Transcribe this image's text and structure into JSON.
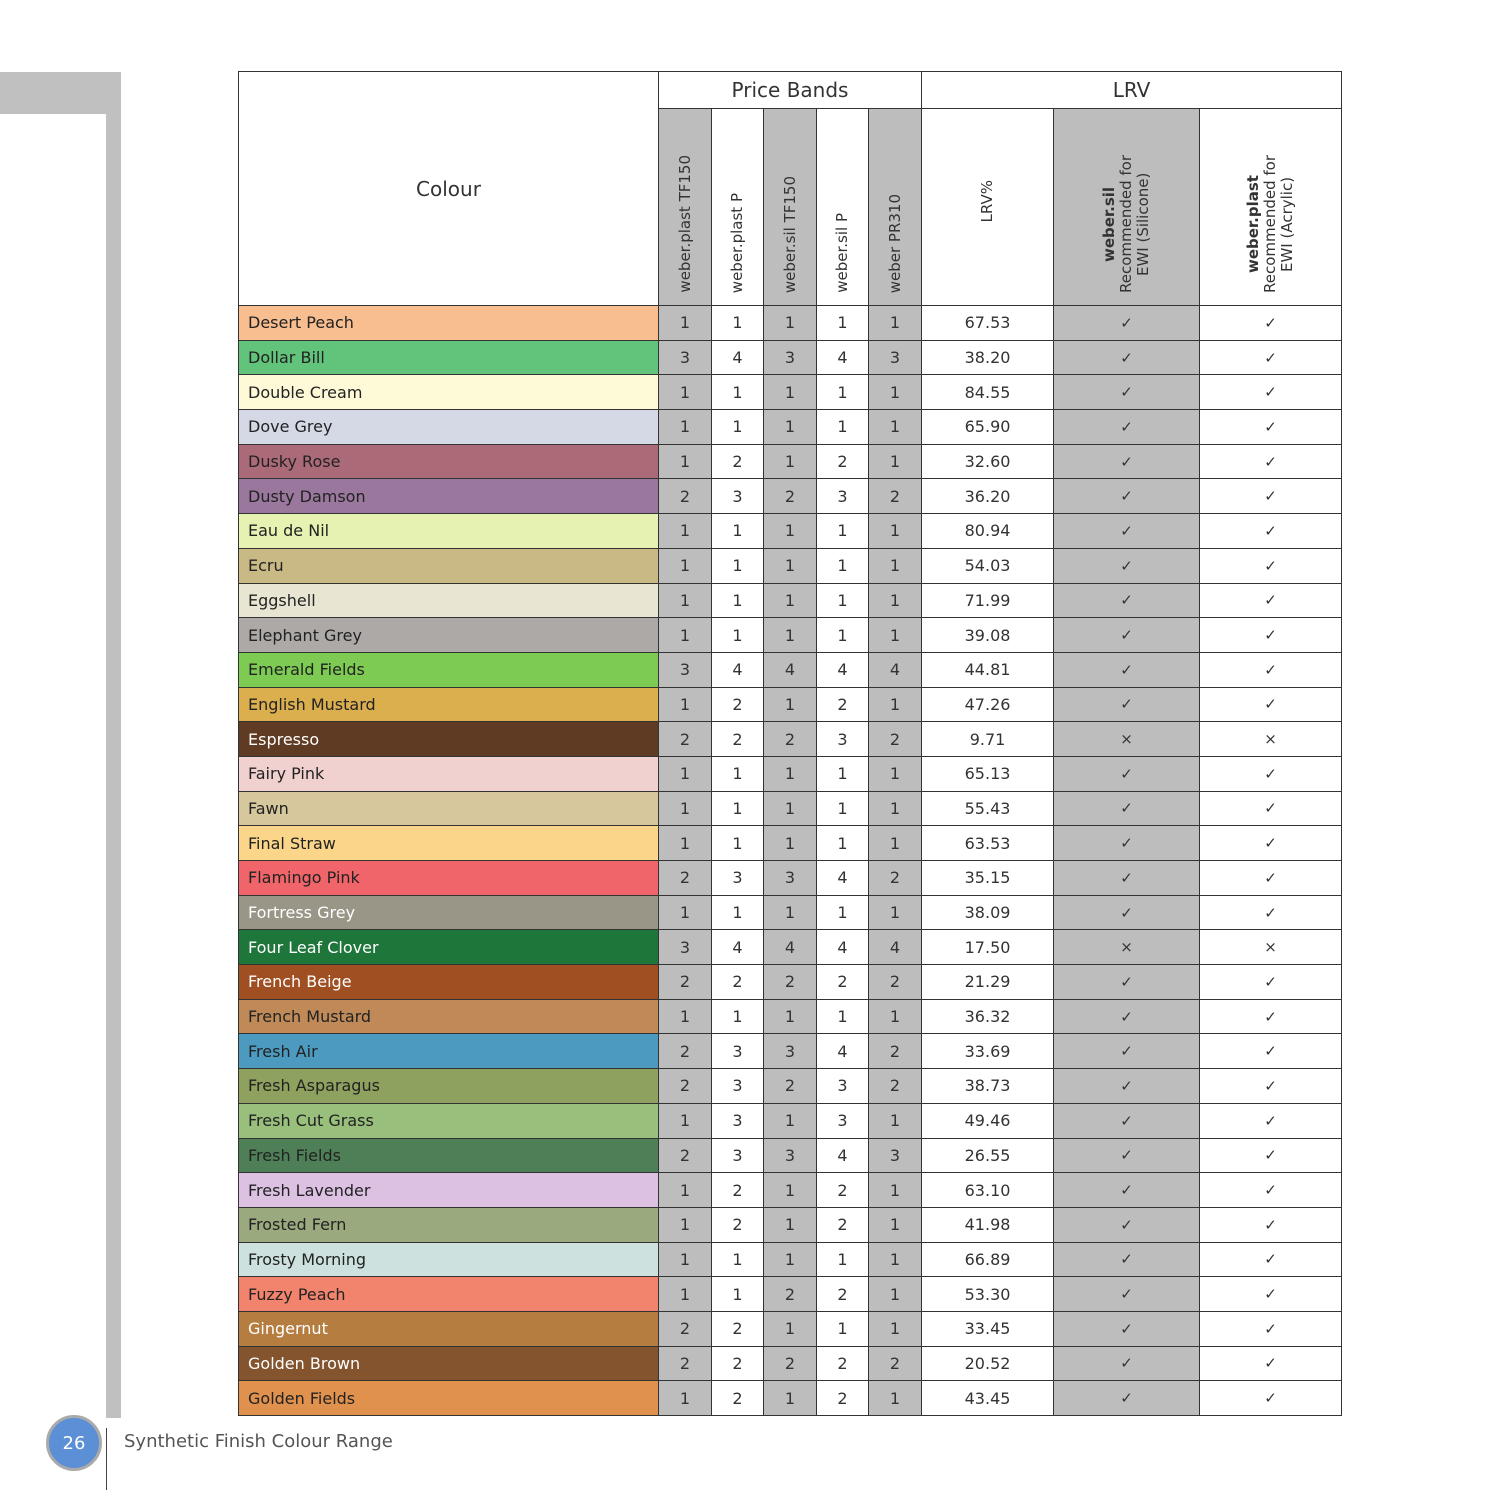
{
  "header": {
    "colour": "Colour",
    "price_bands": "Price Bands",
    "lrv": "LRV",
    "price_cols": [
      "weber.plast TF150",
      "weber.plast P",
      "weber.sil TF150",
      "weber.sil P",
      "weber PR310"
    ],
    "lrv_pct": "LRV%",
    "sil_bold": "weber.sil",
    "sil_rest1": "Recommended for",
    "sil_rest2": "EWI (Silicone)",
    "plast_bold": "weber.plast",
    "plast_rest1": "Recommended for",
    "plast_rest2": "EWI (Acrylic)"
  },
  "marks": {
    "yes": "✓",
    "no": "×"
  },
  "rows": [
    {
      "name": "Desert Peach",
      "color": "#f8be90",
      "bands": [
        1,
        1,
        1,
        1,
        1
      ],
      "lrv": "67.53",
      "sil": "yes",
      "plast": "yes"
    },
    {
      "name": "Dollar Bill",
      "color": "#62c47a",
      "bands": [
        3,
        4,
        3,
        4,
        3
      ],
      "lrv": "38.20",
      "sil": "yes",
      "plast": "yes"
    },
    {
      "name": "Double Cream",
      "color": "#fefad8",
      "bands": [
        1,
        1,
        1,
        1,
        1
      ],
      "lrv": "84.55",
      "sil": "yes",
      "plast": "yes"
    },
    {
      "name": "Dove Grey",
      "color": "#d5d9e6",
      "bands": [
        1,
        1,
        1,
        1,
        1
      ],
      "lrv": "65.90",
      "sil": "yes",
      "plast": "yes"
    },
    {
      "name": "Dusky Rose",
      "color": "#ab6a77",
      "bands": [
        1,
        2,
        1,
        2,
        1
      ],
      "lrv": "32.60",
      "sil": "yes",
      "plast": "yes"
    },
    {
      "name": "Dusty Damson",
      "color": "#9a789e",
      "bands": [
        2,
        3,
        2,
        3,
        2
      ],
      "lrv": "36.20",
      "sil": "yes",
      "plast": "yes"
    },
    {
      "name": "Eau de Nil",
      "color": "#e6f2b2",
      "bands": [
        1,
        1,
        1,
        1,
        1
      ],
      "lrv": "80.94",
      "sil": "yes",
      "plast": "yes"
    },
    {
      "name": "Ecru",
      "color": "#c9b985",
      "bands": [
        1,
        1,
        1,
        1,
        1
      ],
      "lrv": "54.03",
      "sil": "yes",
      "plast": "yes"
    },
    {
      "name": "Eggshell",
      "color": "#e8e6d3",
      "bands": [
        1,
        1,
        1,
        1,
        1
      ],
      "lrv": "71.99",
      "sil": "yes",
      "plast": "yes"
    },
    {
      "name": "Elephant Grey",
      "color": "#ada9a6",
      "bands": [
        1,
        1,
        1,
        1,
        1
      ],
      "lrv": "39.08",
      "sil": "yes",
      "plast": "yes"
    },
    {
      "name": "Emerald Fields",
      "color": "#7ecb53",
      "bands": [
        3,
        4,
        4,
        4,
        4
      ],
      "lrv": "44.81",
      "sil": "yes",
      "plast": "yes"
    },
    {
      "name": "English Mustard",
      "color": "#dbae4e",
      "bands": [
        1,
        2,
        1,
        2,
        1
      ],
      "lrv": "47.26",
      "sil": "yes",
      "plast": "yes"
    },
    {
      "name": "Espresso",
      "color": "#5e3b22",
      "bands": [
        2,
        2,
        2,
        3,
        2
      ],
      "lrv": "9.71",
      "sil": "no",
      "plast": "no",
      "light": true
    },
    {
      "name": "Fairy Pink",
      "color": "#f1d1cf",
      "bands": [
        1,
        1,
        1,
        1,
        1
      ],
      "lrv": "65.13",
      "sil": "yes",
      "plast": "yes"
    },
    {
      "name": "Fawn",
      "color": "#d6c79c",
      "bands": [
        1,
        1,
        1,
        1,
        1
      ],
      "lrv": "55.43",
      "sil": "yes",
      "plast": "yes"
    },
    {
      "name": "Final Straw",
      "color": "#fbd68a",
      "bands": [
        1,
        1,
        1,
        1,
        1
      ],
      "lrv": "63.53",
      "sil": "yes",
      "plast": "yes"
    },
    {
      "name": "Flamingo Pink",
      "color": "#f0656a",
      "bands": [
        2,
        3,
        3,
        4,
        2
      ],
      "lrv": "35.15",
      "sil": "yes",
      "plast": "yes"
    },
    {
      "name": "Fortress Grey",
      "color": "#999688",
      "bands": [
        1,
        1,
        1,
        1,
        1
      ],
      "lrv": "38.09",
      "sil": "yes",
      "plast": "yes",
      "light": true
    },
    {
      "name": "Four Leaf Clover",
      "color": "#1f763b",
      "bands": [
        3,
        4,
        4,
        4,
        4
      ],
      "lrv": "17.50",
      "sil": "no",
      "plast": "no",
      "light": true
    },
    {
      "name": "French Beige",
      "color": "#9f4f22",
      "bands": [
        2,
        2,
        2,
        2,
        2
      ],
      "lrv": "21.29",
      "sil": "yes",
      "plast": "yes",
      "light": true
    },
    {
      "name": "French Mustard",
      "color": "#c08a58",
      "bands": [
        1,
        1,
        1,
        1,
        1
      ],
      "lrv": "36.32",
      "sil": "yes",
      "plast": "yes"
    },
    {
      "name": "Fresh Air",
      "color": "#4d9ac0",
      "bands": [
        2,
        3,
        3,
        4,
        2
      ],
      "lrv": "33.69",
      "sil": "yes",
      "plast": "yes"
    },
    {
      "name": "Fresh Asparagus",
      "color": "#8fa15f",
      "bands": [
        2,
        3,
        2,
        3,
        2
      ],
      "lrv": "38.73",
      "sil": "yes",
      "plast": "yes"
    },
    {
      "name": "Fresh Cut Grass",
      "color": "#98bf7b",
      "bands": [
        1,
        3,
        1,
        3,
        1
      ],
      "lrv": "49.46",
      "sil": "yes",
      "plast": "yes"
    },
    {
      "name": "Fresh Fields",
      "color": "#4e7f56",
      "bands": [
        2,
        3,
        3,
        4,
        3
      ],
      "lrv": "26.55",
      "sil": "yes",
      "plast": "yes"
    },
    {
      "name": "Fresh Lavender",
      "color": "#dcc1e3",
      "bands": [
        1,
        2,
        1,
        2,
        1
      ],
      "lrv": "63.10",
      "sil": "yes",
      "plast": "yes"
    },
    {
      "name": "Frosted Fern",
      "color": "#9aa97e",
      "bands": [
        1,
        2,
        1,
        2,
        1
      ],
      "lrv": "41.98",
      "sil": "yes",
      "plast": "yes"
    },
    {
      "name": "Frosty Morning",
      "color": "#cde2df",
      "bands": [
        1,
        1,
        1,
        1,
        1
      ],
      "lrv": "66.89",
      "sil": "yes",
      "plast": "yes"
    },
    {
      "name": "Fuzzy Peach",
      "color": "#f2846d",
      "bands": [
        1,
        1,
        2,
        2,
        1
      ],
      "lrv": "53.30",
      "sil": "yes",
      "plast": "yes"
    },
    {
      "name": "Gingernut",
      "color": "#b57d40",
      "bands": [
        2,
        2,
        1,
        1,
        1
      ],
      "lrv": "33.45",
      "sil": "yes",
      "plast": "yes",
      "light": true
    },
    {
      "name": "Golden Brown",
      "color": "#83542e",
      "bands": [
        2,
        2,
        2,
        2,
        2
      ],
      "lrv": "20.52",
      "sil": "yes",
      "plast": "yes",
      "light": true
    },
    {
      "name": "Golden Fields",
      "color": "#e0914d",
      "bands": [
        1,
        2,
        1,
        2,
        1
      ],
      "lrv": "43.45",
      "sil": "yes",
      "plast": "yes"
    }
  ],
  "footer": {
    "page_number": "26",
    "title": "Synthetic Finish Colour Range"
  }
}
